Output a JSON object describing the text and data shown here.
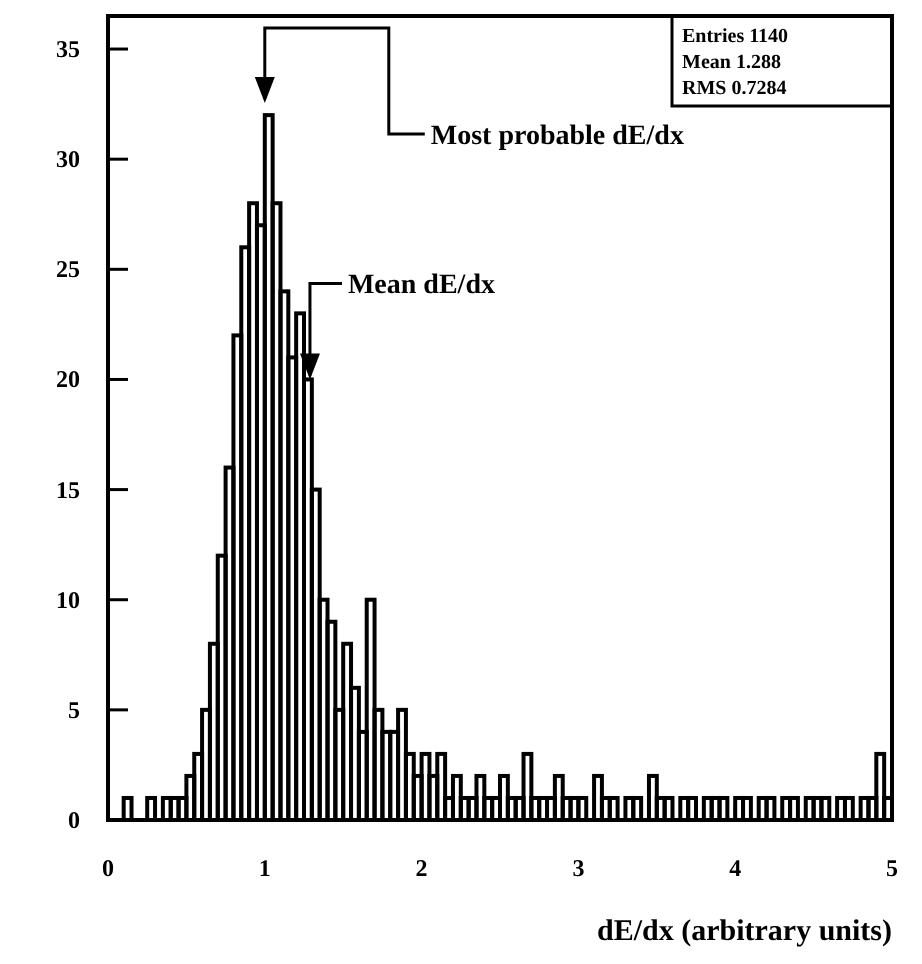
{
  "chart_data": {
    "type": "histogram",
    "xlabel": "dE/dx (arbitrary units)",
    "bins": [
      0,
      0.05,
      0.1,
      0.15,
      0.2,
      0.25,
      0.3,
      0.35,
      0.4,
      0.45,
      0.5,
      0.55,
      0.6,
      0.65,
      0.7,
      0.75,
      0.8,
      0.85,
      0.9,
      0.95,
      1,
      1.05,
      1.1,
      1.15,
      1.2,
      1.25,
      1.3,
      1.35,
      1.4,
      1.45,
      1.5,
      1.55,
      1.6,
      1.65,
      1.7,
      1.75,
      1.8,
      1.85,
      1.9,
      1.95,
      2,
      2.05,
      2.1,
      2.15,
      2.2,
      2.25,
      2.3,
      2.35,
      2.4,
      2.45,
      2.5,
      2.55,
      2.6,
      2.65,
      2.7,
      2.75,
      2.8,
      2.85,
      2.9,
      2.95,
      3,
      3.05,
      3.1,
      3.15,
      3.2,
      3.25,
      3.3,
      3.35,
      3.4,
      3.45,
      3.5,
      3.55,
      3.6,
      3.65,
      3.7,
      3.75,
      3.8,
      3.85,
      3.9,
      3.95,
      4,
      4.05,
      4.1,
      4.15,
      4.2,
      4.25,
      4.3,
      4.35,
      4.4,
      4.45,
      4.5,
      4.55,
      4.6,
      4.65,
      4.7,
      4.75,
      4.8,
      4.85,
      4.9,
      4.95,
      5
    ],
    "values": [
      0,
      0,
      1,
      0,
      0,
      1,
      0,
      1,
      1,
      1,
      2,
      3,
      5,
      8,
      12,
      16,
      22,
      26,
      28,
      27,
      32,
      28,
      24,
      21,
      23,
      20,
      15,
      10,
      9,
      5,
      8,
      6,
      4,
      10,
      5,
      4,
      4,
      5,
      3,
      2,
      3,
      2,
      3,
      1,
      2,
      1,
      1,
      2,
      1,
      1,
      2,
      1,
      1,
      3,
      1,
      1,
      1,
      2,
      1,
      1,
      1,
      0,
      2,
      1,
      1,
      0,
      1,
      1,
      0,
      2,
      1,
      1,
      0,
      1,
      1,
      0,
      1,
      1,
      1,
      0,
      1,
      1,
      0,
      1,
      1,
      0,
      1,
      1,
      0,
      1,
      1,
      1,
      0,
      1,
      1,
      0,
      1,
      1,
      3,
      1
    ],
    "color": "#000000",
    "xlim": [
      0,
      5
    ],
    "xticks": [
      0,
      1,
      2,
      3,
      4,
      5
    ],
    "ylim": [
      0,
      36.5
    ],
    "yticks": [
      0,
      5,
      10,
      15,
      20,
      25,
      30,
      35
    ],
    "annotations": [
      "Most probable dE/dx",
      {
        "text": "Mean dE/dx",
        "x": 1.288,
        "y": 20
      },
      "Entries 1140",
      "Mean 1.288",
      "RMS 0.7284"
    ]
  }
}
